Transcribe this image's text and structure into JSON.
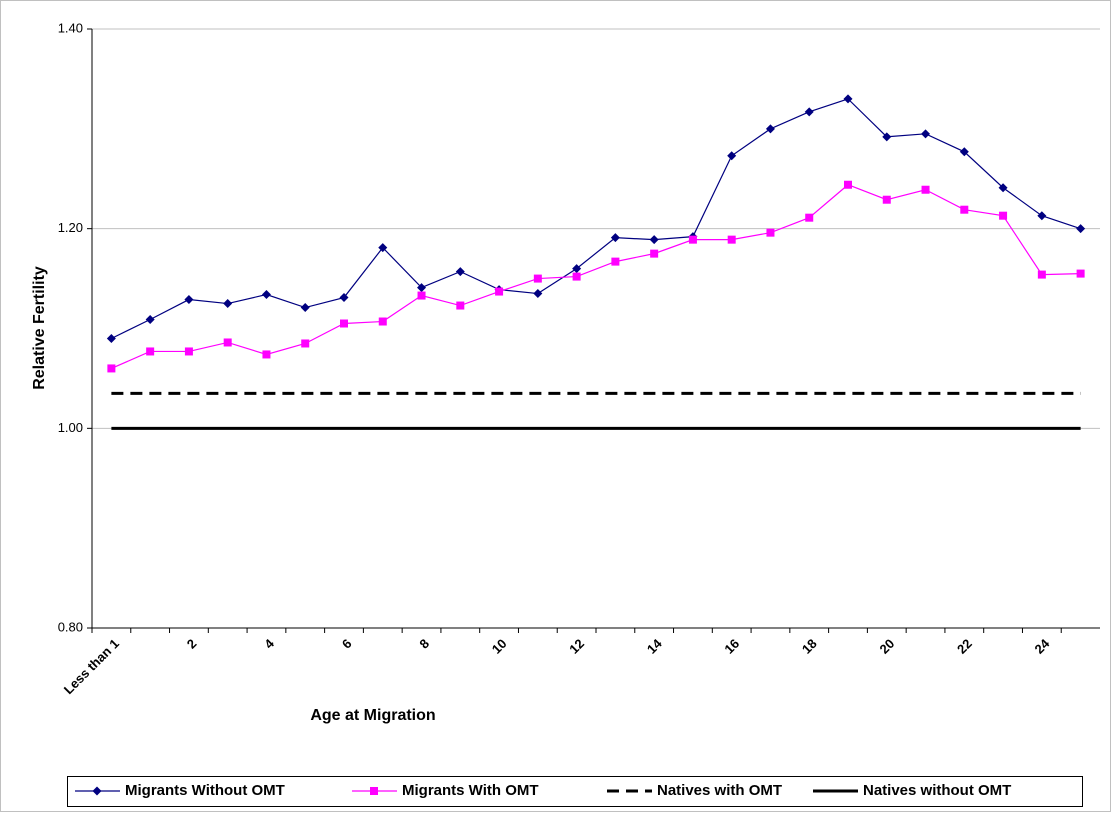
{
  "chart_data": {
    "type": "line",
    "x_label": "Age at Migration",
    "y_label": "Relative Fertility",
    "categories": [
      "Less than 1",
      null,
      "2",
      null,
      "4",
      null,
      "6",
      null,
      "8",
      null,
      "10",
      null,
      "12",
      null,
      "14",
      null,
      "16",
      null,
      "18",
      null,
      "20",
      null,
      "22",
      null,
      "24",
      null
    ],
    "ylim": [
      0.8,
      1.4
    ],
    "yticks": [
      {
        "value": 0.8,
        "label": "0.80"
      },
      {
        "value": 1.0,
        "label": "1.00"
      },
      {
        "value": 1.2,
        "label": "1.20"
      },
      {
        "value": 1.4,
        "label": "1.40"
      }
    ],
    "grid": true,
    "legend": "bottom",
    "series": [
      {
        "name": "Migrants Without OMT",
        "color": "#000080",
        "marker": "diamond",
        "line_style": "solid",
        "line_width": 1.2,
        "values": [
          1.09,
          1.109,
          1.129,
          1.125,
          1.134,
          1.121,
          1.131,
          1.181,
          1.141,
          1.157,
          1.139,
          1.135,
          1.16,
          1.191,
          1.189,
          1.192,
          1.273,
          1.3,
          1.317,
          1.33,
          1.292,
          1.295,
          1.277,
          1.241,
          1.213,
          1.2
        ]
      },
      {
        "name": "Migrants With OMT",
        "color": "#ff00ff",
        "marker": "square",
        "line_style": "solid",
        "line_width": 1.2,
        "values": [
          1.06,
          1.077,
          1.077,
          1.086,
          1.074,
          1.085,
          1.105,
          1.107,
          1.133,
          1.123,
          1.137,
          1.15,
          1.152,
          1.167,
          1.175,
          1.189,
          1.189,
          1.196,
          1.211,
          1.244,
          1.229,
          1.239,
          1.219,
          1.213,
          1.154,
          1.155
        ]
      },
      {
        "name": "Natives with OMT",
        "color": "#000000",
        "marker": "none",
        "line_style": "dashed",
        "line_width": 3,
        "values": [
          1.035,
          1.035,
          1.035,
          1.035,
          1.035,
          1.035,
          1.035,
          1.035,
          1.035,
          1.035,
          1.035,
          1.035,
          1.035,
          1.035,
          1.035,
          1.035,
          1.035,
          1.035,
          1.035,
          1.035,
          1.035,
          1.035,
          1.035,
          1.035,
          1.035,
          1.035
        ]
      },
      {
        "name": "Natives without OMT",
        "color": "#000000",
        "marker": "none",
        "line_style": "solid",
        "line_width": 3,
        "values": [
          1.0,
          1.0,
          1.0,
          1.0,
          1.0,
          1.0,
          1.0,
          1.0,
          1.0,
          1.0,
          1.0,
          1.0,
          1.0,
          1.0,
          1.0,
          1.0,
          1.0,
          1.0,
          1.0,
          1.0,
          1.0,
          1.0,
          1.0,
          1.0,
          1.0,
          1.0
        ]
      }
    ]
  }
}
